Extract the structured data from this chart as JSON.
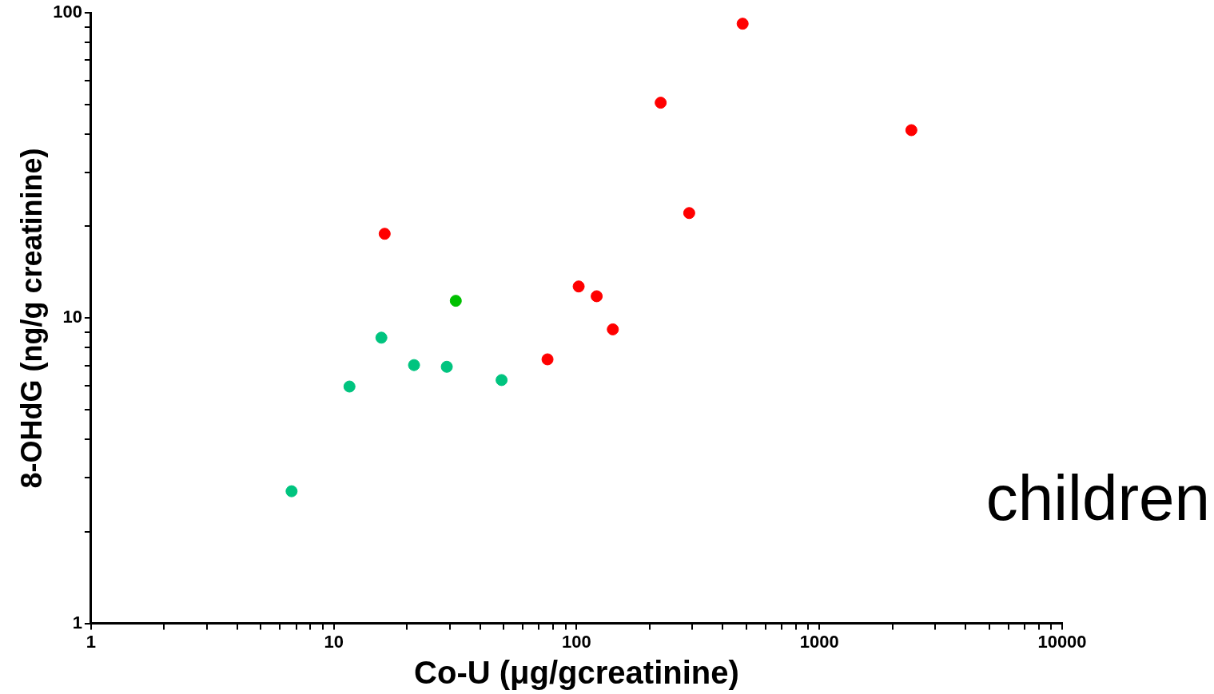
{
  "chart_data": {
    "type": "scatter",
    "xlabel": "Co-U (μg/gcreatinine)",
    "ylabel": "8-OHdG (ng/g creatinine)",
    "log": "xy",
    "grid": false,
    "legend": false,
    "marker": "circle",
    "xlim": [
      1,
      10000
    ],
    "ylim": [
      1,
      100
    ],
    "xticks": [
      1,
      {
        "value": 2,
        "label": null
      },
      {
        "value": 3,
        "label": null
      },
      {
        "value": 4,
        "label": null
      },
      {
        "value": 5,
        "label": null
      },
      {
        "value": 6,
        "label": null
      },
      {
        "value": 7,
        "label": null
      },
      {
        "value": 8,
        "label": null
      },
      {
        "value": 9,
        "label": null
      },
      10,
      {
        "value": 20,
        "label": null
      },
      {
        "value": 30,
        "label": null
      },
      {
        "value": 40,
        "label": null
      },
      {
        "value": 50,
        "label": null
      },
      {
        "value": 60,
        "label": null
      },
      {
        "value": 70,
        "label": null
      },
      {
        "value": 80,
        "label": null
      },
      {
        "value": 90,
        "label": null
      },
      100,
      {
        "value": 200,
        "label": null
      },
      {
        "value": 300,
        "label": null
      },
      {
        "value": 400,
        "label": null
      },
      {
        "value": 500,
        "label": null
      },
      {
        "value": 600,
        "label": null
      },
      {
        "value": 700,
        "label": null
      },
      {
        "value": 800,
        "label": null
      },
      {
        "value": 900,
        "label": null
      },
      1000,
      {
        "value": 2000,
        "label": null
      },
      {
        "value": 3000,
        "label": null
      },
      {
        "value": 4000,
        "label": null
      },
      {
        "value": 5000,
        "label": null
      },
      {
        "value": 6000,
        "label": null
      },
      {
        "value": 7000,
        "label": null
      },
      {
        "value": 8000,
        "label": null
      },
      {
        "value": 9000,
        "label": null
      },
      10000
    ],
    "yticks": [
      1,
      {
        "value": 2,
        "label": null
      },
      {
        "value": 3,
        "label": null
      },
      {
        "value": 4,
        "label": null
      },
      {
        "value": 5,
        "label": null
      },
      {
        "value": 6,
        "label": null
      },
      {
        "value": 7,
        "label": null
      },
      {
        "value": 8,
        "label": null
      },
      {
        "value": 9,
        "label": null
      },
      10,
      {
        "value": 20,
        "label": null
      },
      {
        "value": 30,
        "label": null
      },
      {
        "value": 40,
        "label": null
      },
      {
        "value": 50,
        "label": null
      },
      {
        "value": 60,
        "label": null
      },
      {
        "value": 70,
        "label": null
      },
      {
        "value": 80,
        "label": null
      },
      {
        "value": 90,
        "label": null
      },
      100
    ],
    "annotations": [
      "children"
    ],
    "series": [
      {
        "color": "#00c47f",
        "x": [
          6.7,
          11.6,
          15.7,
          21.4,
          29.2,
          49.1
        ],
        "values": [
          2.71,
          5.97,
          8.63,
          7.02,
          6.93,
          6.27
        ]
      },
      {
        "color": "#00c000",
        "x": [
          31.8
        ],
        "values": [
          11.4
        ]
      },
      {
        "color": "#ff0000",
        "x": [
          16.2,
          75.9,
          102,
          121,
          141,
          222,
          291,
          483,
          2393
        ],
        "values": [
          18.9,
          7.33,
          12.7,
          11.8,
          9.19,
          50.8,
          22.1,
          92.2,
          41.3
        ]
      }
    ]
  }
}
